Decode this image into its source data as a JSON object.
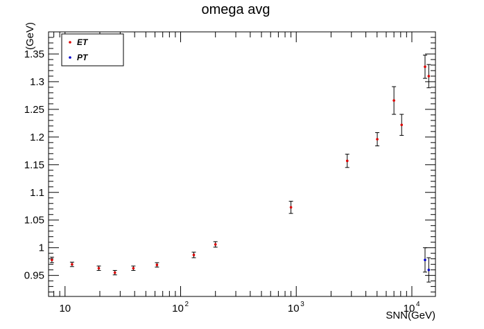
{
  "chart_data": {
    "type": "scatter",
    "title": "omega avg",
    "xlabel": "SNN(GeV)",
    "ylabel": "(GeV)",
    "xscale": "log",
    "xlim": [
      7.2,
      16000
    ],
    "ylim": [
      0.912,
      1.39
    ],
    "x_ticks": [
      {
        "base": "10",
        "exp": "",
        "value": 10
      },
      {
        "base": "10",
        "exp": "2",
        "value": 100
      },
      {
        "base": "10",
        "exp": "3",
        "value": 1000
      },
      {
        "base": "10",
        "exp": "4",
        "value": 10000
      }
    ],
    "y_ticks": [
      {
        "label": "0.95",
        "value": 0.95
      },
      {
        "label": "1",
        "value": 1.0
      },
      {
        "label": "1.05",
        "value": 1.05
      },
      {
        "label": "1.1",
        "value": 1.1
      },
      {
        "label": "1.15",
        "value": 1.15
      },
      {
        "label": "1.2",
        "value": 1.2
      },
      {
        "label": "1.25",
        "value": 1.25
      },
      {
        "label": "1.3",
        "value": 1.3
      },
      {
        "label": "1.35",
        "value": 1.35
      }
    ],
    "grid": false,
    "legend_position": "top-left",
    "series": [
      {
        "name": "ET",
        "color": "#dd0000",
        "points": [
          {
            "x": 7.7,
            "y": 0.978,
            "err": 0.005
          },
          {
            "x": 11.5,
            "y": 0.97,
            "err": 0.004
          },
          {
            "x": 19.6,
            "y": 0.963,
            "err": 0.004
          },
          {
            "x": 27,
            "y": 0.955,
            "err": 0.004
          },
          {
            "x": 39,
            "y": 0.963,
            "err": 0.004
          },
          {
            "x": 62.4,
            "y": 0.969,
            "err": 0.004
          },
          {
            "x": 130,
            "y": 0.987,
            "err": 0.005
          },
          {
            "x": 200,
            "y": 1.006,
            "err": 0.005
          },
          {
            "x": 900,
            "y": 1.073,
            "err": 0.011
          },
          {
            "x": 2760,
            "y": 1.157,
            "err": 0.012
          },
          {
            "x": 5020,
            "y": 1.196,
            "err": 0.012
          },
          {
            "x": 7000,
            "y": 1.266,
            "err": 0.025
          },
          {
            "x": 8160,
            "y": 1.222,
            "err": 0.019
          },
          {
            "x": 13000,
            "y": 1.327,
            "err": 0.021
          },
          {
            "x": 14000,
            "y": 1.31,
            "err": 0.021
          }
        ]
      },
      {
        "name": "PT",
        "color": "#0000cc",
        "points": [
          {
            "x": 13000,
            "y": 0.978,
            "err": 0.022
          },
          {
            "x": 14000,
            "y": 0.96,
            "err": 0.022
          }
        ]
      }
    ]
  }
}
